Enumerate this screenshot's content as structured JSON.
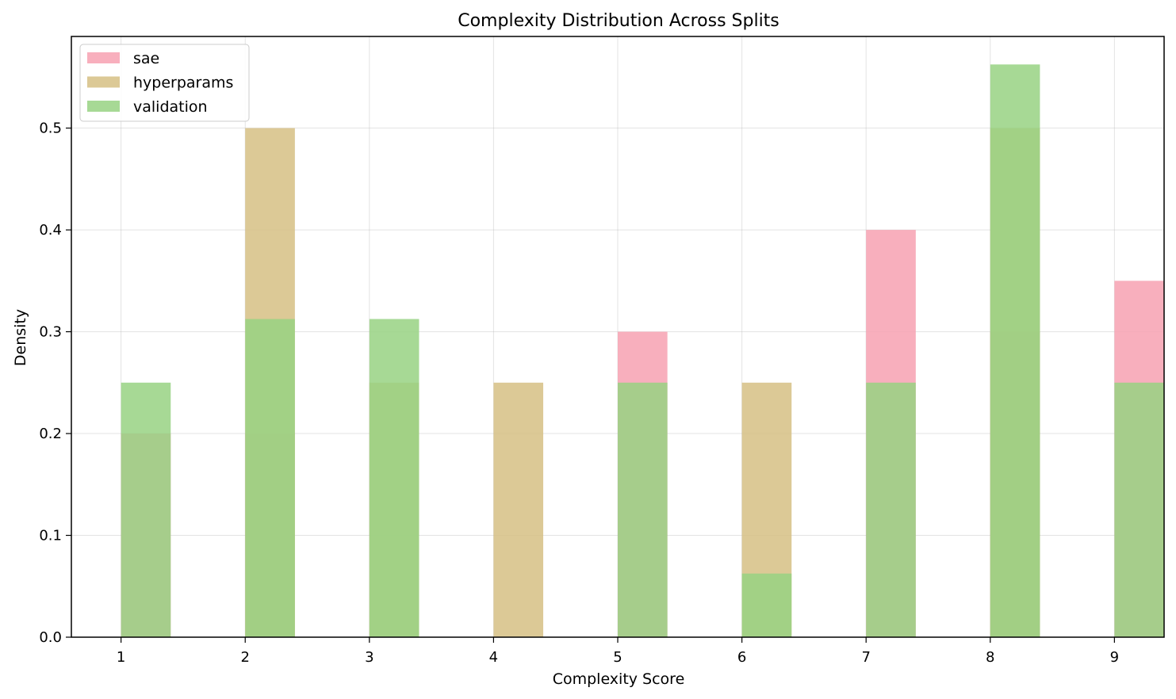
{
  "chart_data": {
    "type": "bar",
    "title": "Complexity Distribution Across Splits",
    "xlabel": "Complexity Score",
    "ylabel": "Density",
    "xlim": [
      0.6,
      9.4
    ],
    "ylim": [
      0,
      0.59
    ],
    "xticks": [
      1,
      2,
      3,
      4,
      5,
      6,
      7,
      8,
      9
    ],
    "yticks": [
      0.0,
      0.1,
      0.2,
      0.3,
      0.4,
      0.5
    ],
    "ytick_labels": [
      "0.0",
      "0.1",
      "0.2",
      "0.3",
      "0.4",
      "0.5"
    ],
    "bin_width": 0.4,
    "grid": true,
    "legend_position": "top-left",
    "series": [
      {
        "name": "sae",
        "color": "#f7a1b2",
        "x": [
          1,
          2,
          3,
          4,
          5,
          6,
          7,
          8,
          9
        ],
        "values": [
          0.2,
          0.2,
          0.0,
          0.0,
          0.3,
          0.0,
          0.4,
          0.3,
          0.35
        ]
      },
      {
        "name": "hyperparams",
        "color": "#d6c084",
        "x": [
          1,
          2,
          3,
          4,
          5,
          6,
          7,
          8,
          9
        ],
        "values": [
          0.0,
          0.5,
          0.25,
          0.25,
          0.0,
          0.25,
          0.0,
          0.5,
          0.0
        ]
      },
      {
        "name": "validation",
        "color": "#98d283",
        "x": [
          1,
          2,
          3,
          4,
          5,
          6,
          7,
          8,
          9
        ],
        "values": [
          0.25,
          0.3125,
          0.3125,
          0.0,
          0.25,
          0.0625,
          0.25,
          0.5625,
          0.25
        ]
      }
    ]
  }
}
